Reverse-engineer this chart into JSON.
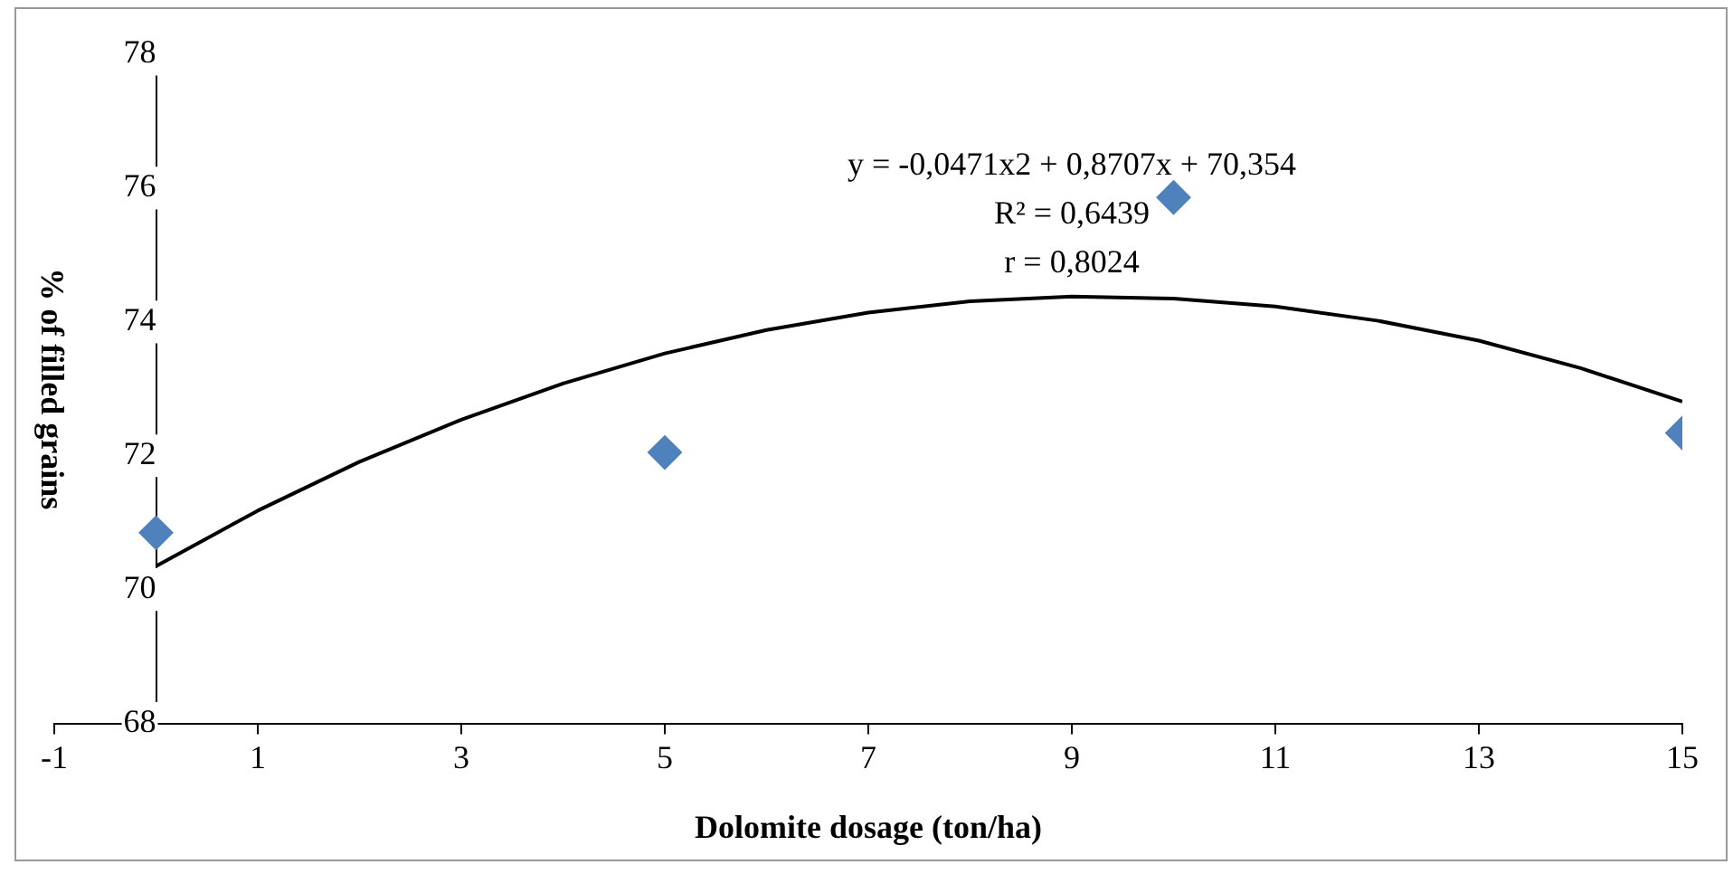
{
  "chart_data": {
    "type": "scatter",
    "xlabel": "Dolomite dosage (ton/ha)",
    "ylabel": "% of filled grains",
    "x": [
      0,
      5,
      10,
      15
    ],
    "series": [
      {
        "color": "#4f81bd",
        "values": [
          70.85,
          72.05,
          75.86,
          72.34
        ],
        "marker": "diamond"
      },
      {
        "type": "line",
        "color": "#000000",
        "marker": "none",
        "x": [
          0,
          1,
          2,
          3,
          4,
          5,
          6,
          7,
          8,
          9,
          10,
          11,
          12,
          13,
          14,
          15
        ],
        "values": [
          70.35,
          71.18,
          71.91,
          72.54,
          73.08,
          73.53,
          73.88,
          74.14,
          74.31,
          74.38,
          74.35,
          74.23,
          74.02,
          73.72,
          73.31,
          72.81
        ]
      }
    ],
    "xlim": [
      -1,
      15
    ],
    "xticks": [
      -1,
      1,
      3,
      5,
      7,
      9,
      11,
      13,
      15
    ],
    "ylim": [
      68,
      78
    ],
    "yticks": [
      68,
      70,
      72,
      74,
      76,
      78
    ],
    "grid": false,
    "legend": false,
    "annotations": [
      "y = -0,0471x2 + 0,8707x + 70,354",
      "R² = 0,6439",
      "r = 0,8024"
    ]
  }
}
